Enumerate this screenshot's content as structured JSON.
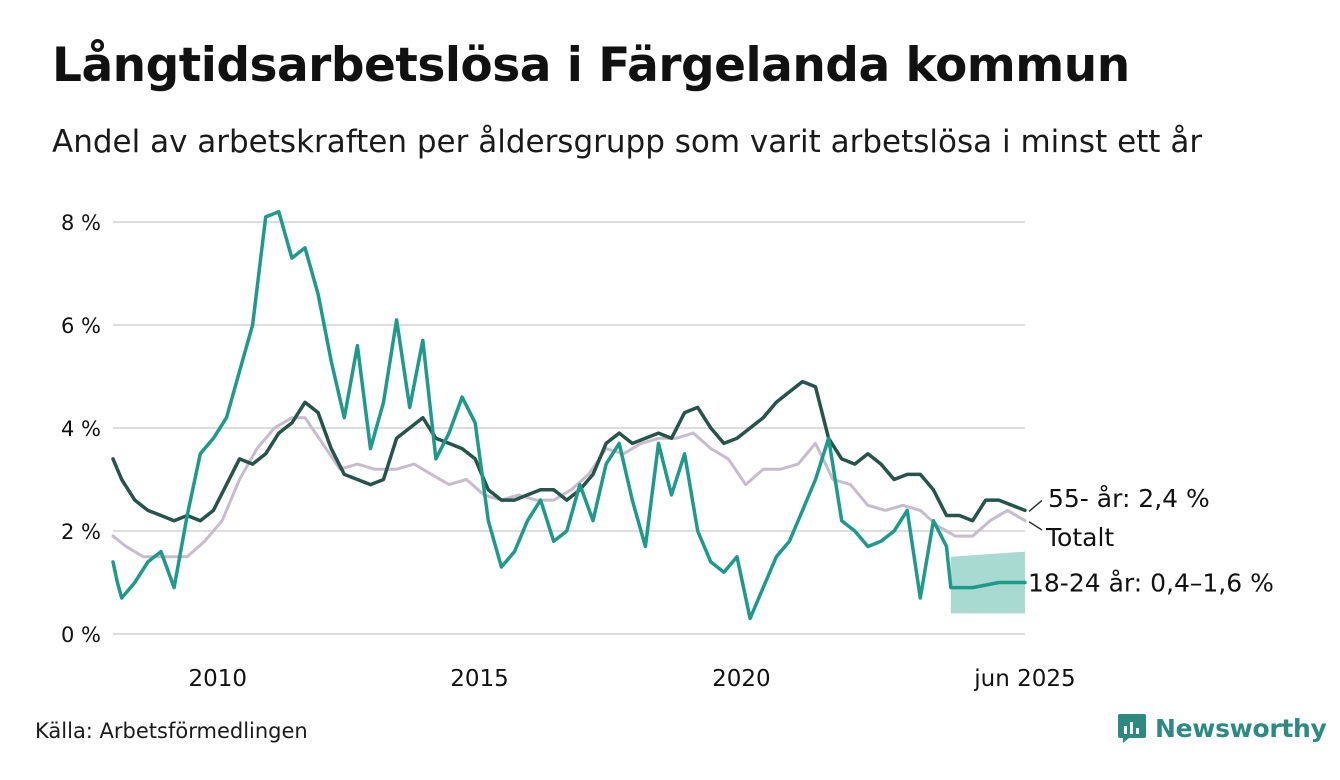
{
  "title": "Långtidsarbetslösa i Färgelanda kommun",
  "subtitle": "Andel av arbetskraften per åldersgrupp som varit arbetslösa i minst ett år",
  "source": "Källa: Arbetsförmedlingen",
  "brand": "Newsworthy",
  "colors": {
    "series_55": "#24544a",
    "series_1824": "#1e9a8a",
    "series_total": "#c6bccd",
    "band_1824": "#a3d8cf",
    "grid": "#dddddd",
    "brand": "#2e8a80"
  },
  "chart_data": {
    "type": "line",
    "x_unit": "month",
    "xlim": [
      "2008-01",
      "2025-06"
    ],
    "ylim": [
      0,
      8
    ],
    "y_ticks": [
      0,
      2,
      4,
      6,
      8
    ],
    "y_tick_labels": [
      "0 %",
      "2 %",
      "4 %",
      "6 %",
      "8 %"
    ],
    "x_ticks": [
      "2010-01",
      "2015-01",
      "2020-01",
      "2025-06"
    ],
    "x_tick_labels": [
      "2010",
      "2015",
      "2020",
      "jun 2025"
    ],
    "grid": true,
    "series": [
      {
        "key": "total",
        "label": "Totalt",
        "color": "#c6bccd",
        "points": [
          [
            "2008-01",
            1.9
          ],
          [
            "2008-04",
            1.7
          ],
          [
            "2008-08",
            1.5
          ],
          [
            "2009-01",
            1.5
          ],
          [
            "2009-06",
            1.5
          ],
          [
            "2009-10",
            1.8
          ],
          [
            "2010-02",
            2.2
          ],
          [
            "2010-06",
            3.0
          ],
          [
            "2010-10",
            3.6
          ],
          [
            "2011-02",
            4.0
          ],
          [
            "2011-06",
            4.2
          ],
          [
            "2011-09",
            4.2
          ],
          [
            "2012-01",
            3.7
          ],
          [
            "2012-05",
            3.2
          ],
          [
            "2012-09",
            3.3
          ],
          [
            "2013-01",
            3.2
          ],
          [
            "2013-06",
            3.2
          ],
          [
            "2013-10",
            3.3
          ],
          [
            "2014-02",
            3.1
          ],
          [
            "2014-06",
            2.9
          ],
          [
            "2014-10",
            3.0
          ],
          [
            "2015-02",
            2.7
          ],
          [
            "2015-06",
            2.6
          ],
          [
            "2015-10",
            2.7
          ],
          [
            "2016-02",
            2.6
          ],
          [
            "2016-06",
            2.6
          ],
          [
            "2016-10",
            2.8
          ],
          [
            "2017-02",
            3.1
          ],
          [
            "2017-06",
            3.6
          ],
          [
            "2017-10",
            3.5
          ],
          [
            "2018-02",
            3.7
          ],
          [
            "2018-06",
            3.8
          ],
          [
            "2018-10",
            3.8
          ],
          [
            "2019-02",
            3.9
          ],
          [
            "2019-06",
            3.6
          ],
          [
            "2019-10",
            3.4
          ],
          [
            "2020-02",
            2.9
          ],
          [
            "2020-06",
            3.2
          ],
          [
            "2020-10",
            3.2
          ],
          [
            "2021-02",
            3.3
          ],
          [
            "2021-06",
            3.7
          ],
          [
            "2021-10",
            3.0
          ],
          [
            "2022-02",
            2.9
          ],
          [
            "2022-06",
            2.5
          ],
          [
            "2022-10",
            2.4
          ],
          [
            "2023-02",
            2.5
          ],
          [
            "2023-06",
            2.4
          ],
          [
            "2023-10",
            2.1
          ],
          [
            "2024-02",
            1.9
          ],
          [
            "2024-06",
            1.9
          ],
          [
            "2024-10",
            2.2
          ],
          [
            "2025-02",
            2.4
          ],
          [
            "2025-06",
            2.2
          ]
        ]
      },
      {
        "key": "age_55",
        "label": "55- år: 2,4 %",
        "color": "#24544a",
        "points": [
          [
            "2008-01",
            3.4
          ],
          [
            "2008-03",
            3.0
          ],
          [
            "2008-06",
            2.6
          ],
          [
            "2008-09",
            2.4
          ],
          [
            "2008-12",
            2.3
          ],
          [
            "2009-03",
            2.2
          ],
          [
            "2009-06",
            2.3
          ],
          [
            "2009-09",
            2.2
          ],
          [
            "2009-12",
            2.4
          ],
          [
            "2010-03",
            2.9
          ],
          [
            "2010-06",
            3.4
          ],
          [
            "2010-09",
            3.3
          ],
          [
            "2010-12",
            3.5
          ],
          [
            "2011-03",
            3.9
          ],
          [
            "2011-06",
            4.1
          ],
          [
            "2011-09",
            4.5
          ],
          [
            "2011-12",
            4.3
          ],
          [
            "2012-03",
            3.6
          ],
          [
            "2012-06",
            3.1
          ],
          [
            "2012-09",
            3.0
          ],
          [
            "2012-12",
            2.9
          ],
          [
            "2013-03",
            3.0
          ],
          [
            "2013-06",
            3.8
          ],
          [
            "2013-09",
            4.0
          ],
          [
            "2013-12",
            4.2
          ],
          [
            "2014-03",
            3.8
          ],
          [
            "2014-06",
            3.7
          ],
          [
            "2014-09",
            3.6
          ],
          [
            "2014-12",
            3.4
          ],
          [
            "2015-03",
            2.8
          ],
          [
            "2015-06",
            2.6
          ],
          [
            "2015-09",
            2.6
          ],
          [
            "2015-12",
            2.7
          ],
          [
            "2016-03",
            2.8
          ],
          [
            "2016-06",
            2.8
          ],
          [
            "2016-09",
            2.6
          ],
          [
            "2016-12",
            2.8
          ],
          [
            "2017-03",
            3.1
          ],
          [
            "2017-06",
            3.7
          ],
          [
            "2017-09",
            3.9
          ],
          [
            "2017-12",
            3.7
          ],
          [
            "2018-03",
            3.8
          ],
          [
            "2018-06",
            3.9
          ],
          [
            "2018-09",
            3.8
          ],
          [
            "2018-12",
            4.3
          ],
          [
            "2019-03",
            4.4
          ],
          [
            "2019-06",
            4.0
          ],
          [
            "2019-09",
            3.7
          ],
          [
            "2019-12",
            3.8
          ],
          [
            "2020-03",
            4.0
          ],
          [
            "2020-06",
            4.2
          ],
          [
            "2020-09",
            4.5
          ],
          [
            "2020-12",
            4.7
          ],
          [
            "2021-03",
            4.9
          ],
          [
            "2021-06",
            4.8
          ],
          [
            "2021-09",
            3.8
          ],
          [
            "2021-12",
            3.4
          ],
          [
            "2022-03",
            3.3
          ],
          [
            "2022-06",
            3.5
          ],
          [
            "2022-09",
            3.3
          ],
          [
            "2022-12",
            3.0
          ],
          [
            "2023-03",
            3.1
          ],
          [
            "2023-06",
            3.1
          ],
          [
            "2023-09",
            2.8
          ],
          [
            "2023-12",
            2.3
          ],
          [
            "2024-03",
            2.3
          ],
          [
            "2024-06",
            2.2
          ],
          [
            "2024-09",
            2.6
          ],
          [
            "2024-12",
            2.6
          ],
          [
            "2025-03",
            2.5
          ],
          [
            "2025-06",
            2.4
          ]
        ]
      },
      {
        "key": "age_18_24",
        "label": "18-24 år: 0,4–1,6 %",
        "color": "#1e9a8a",
        "points": [
          [
            "2008-01",
            1.4
          ],
          [
            "2008-02",
            1.0
          ],
          [
            "2008-03",
            0.7
          ],
          [
            "2008-06",
            1.0
          ],
          [
            "2008-09",
            1.4
          ],
          [
            "2008-12",
            1.6
          ],
          [
            "2009-03",
            0.9
          ],
          [
            "2009-06",
            2.3
          ],
          [
            "2009-09",
            3.5
          ],
          [
            "2009-12",
            3.8
          ],
          [
            "2010-03",
            4.2
          ],
          [
            "2010-06",
            5.1
          ],
          [
            "2010-09",
            6.0
          ],
          [
            "2010-12",
            8.1
          ],
          [
            "2011-03",
            8.2
          ],
          [
            "2011-06",
            7.3
          ],
          [
            "2011-09",
            7.5
          ],
          [
            "2011-12",
            6.6
          ],
          [
            "2012-03",
            5.3
          ],
          [
            "2012-06",
            4.2
          ],
          [
            "2012-09",
            5.6
          ],
          [
            "2012-12",
            3.6
          ],
          [
            "2013-03",
            4.5
          ],
          [
            "2013-06",
            6.1
          ],
          [
            "2013-09",
            4.4
          ],
          [
            "2013-12",
            5.7
          ],
          [
            "2014-03",
            3.4
          ],
          [
            "2014-06",
            3.9
          ],
          [
            "2014-09",
            4.6
          ],
          [
            "2014-12",
            4.1
          ],
          [
            "2015-03",
            2.2
          ],
          [
            "2015-06",
            1.3
          ],
          [
            "2015-09",
            1.6
          ],
          [
            "2015-12",
            2.2
          ],
          [
            "2016-03",
            2.6
          ],
          [
            "2016-06",
            1.8
          ],
          [
            "2016-09",
            2.0
          ],
          [
            "2016-12",
            2.9
          ],
          [
            "2017-03",
            2.2
          ],
          [
            "2017-06",
            3.3
          ],
          [
            "2017-09",
            3.7
          ],
          [
            "2017-12",
            2.6
          ],
          [
            "2018-03",
            1.7
          ],
          [
            "2018-06",
            3.7
          ],
          [
            "2018-09",
            2.7
          ],
          [
            "2018-12",
            3.5
          ],
          [
            "2019-03",
            2.0
          ],
          [
            "2019-06",
            1.4
          ],
          [
            "2019-09",
            1.2
          ],
          [
            "2019-12",
            1.5
          ],
          [
            "2020-03",
            0.3
          ],
          [
            "2020-06",
            0.9
          ],
          [
            "2020-09",
            1.5
          ],
          [
            "2020-12",
            1.8
          ],
          [
            "2021-03",
            2.4
          ],
          [
            "2021-06",
            3.0
          ],
          [
            "2021-09",
            3.8
          ],
          [
            "2021-12",
            2.2
          ],
          [
            "2022-03",
            2.0
          ],
          [
            "2022-06",
            1.7
          ],
          [
            "2022-09",
            1.8
          ],
          [
            "2022-12",
            2.0
          ],
          [
            "2023-03",
            2.4
          ],
          [
            "2023-06",
            0.7
          ],
          [
            "2023-09",
            2.2
          ],
          [
            "2023-12",
            1.7
          ],
          [
            "2024-01",
            0.9
          ],
          [
            "2024-06",
            0.9
          ],
          [
            "2024-12",
            1.0
          ],
          [
            "2025-06",
            1.0
          ]
        ],
        "band": {
          "from": "2024-01",
          "to": "2025-06",
          "lower": [
            0.4,
            0.4
          ],
          "upper": [
            1.5,
            1.6
          ]
        }
      }
    ]
  }
}
